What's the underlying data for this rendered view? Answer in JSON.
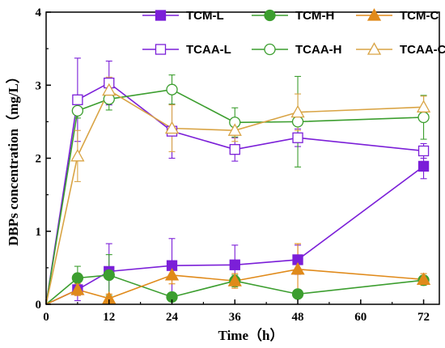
{
  "chart_data": {
    "type": "line",
    "xlabel": "Time（h）",
    "ylabel": "DBPs concentration（mg/L）",
    "xlim": [
      0,
      75
    ],
    "ylim": [
      0,
      4
    ],
    "xticks": [
      0,
      12,
      24,
      36,
      48,
      60,
      72
    ],
    "yticks": [
      0,
      1,
      2,
      3,
      4
    ],
    "legend_placement": "top",
    "series": [
      {
        "name": "TCM-L",
        "color": "#7B1FD8",
        "marker": "square",
        "filled": true,
        "x": [
          0,
          6,
          12,
          24,
          36,
          48,
          72
        ],
        "y": [
          0,
          0.2,
          0.45,
          0.53,
          0.54,
          0.61,
          1.89
        ],
        "err": [
          0,
          0.15,
          0.38,
          0.37,
          0.27,
          0.2,
          0.17
        ]
      },
      {
        "name": "TCM-H",
        "color": "#3C9E2F",
        "marker": "circle",
        "filled": true,
        "x": [
          0,
          6,
          12,
          24,
          36,
          48,
          72
        ],
        "y": [
          0,
          0.36,
          0.4,
          0.1,
          0.32,
          0.14,
          0.33
        ],
        "err": [
          0,
          0.16,
          0.28,
          0.06,
          0.08,
          0.05,
          0.05
        ]
      },
      {
        "name": "TCM-C",
        "color": "#E08A1A",
        "marker": "triangle",
        "filled": true,
        "x": [
          0,
          6,
          12,
          24,
          36,
          48,
          72
        ],
        "y": [
          0,
          0.2,
          0.08,
          0.4,
          0.32,
          0.48,
          0.34
        ],
        "err": [
          0,
          0.08,
          0.06,
          0.12,
          0.1,
          0.35,
          0.08
        ]
      },
      {
        "name": "TCAA-L",
        "color": "#7B1FD8",
        "marker": "square",
        "filled": false,
        "x": [
          0,
          6,
          12,
          24,
          36,
          48,
          72
        ],
        "y": [
          0,
          2.8,
          3.03,
          2.37,
          2.12,
          2.28,
          2.1
        ],
        "err": [
          0,
          0.57,
          0.3,
          0.37,
          0.16,
          0.12,
          0.1
        ]
      },
      {
        "name": "TCAA-H",
        "color": "#3C9E2F",
        "marker": "circle",
        "filled": false,
        "x": [
          0,
          6,
          12,
          24,
          36,
          48,
          72
        ],
        "y": [
          0,
          2.65,
          2.81,
          2.94,
          2.49,
          2.5,
          2.56
        ],
        "err": [
          0,
          0.1,
          0.15,
          0.2,
          0.2,
          0.62,
          0.3
        ]
      },
      {
        "name": "TCAA-C",
        "color": "#D9A445",
        "marker": "triangle",
        "filled": false,
        "x": [
          0,
          6,
          12,
          24,
          36,
          48,
          72
        ],
        "y": [
          0,
          2.03,
          2.93,
          2.41,
          2.38,
          2.63,
          2.7
        ],
        "err": [
          0,
          0.35,
          0.18,
          0.32,
          0.15,
          0.25,
          0.15
        ]
      }
    ]
  }
}
